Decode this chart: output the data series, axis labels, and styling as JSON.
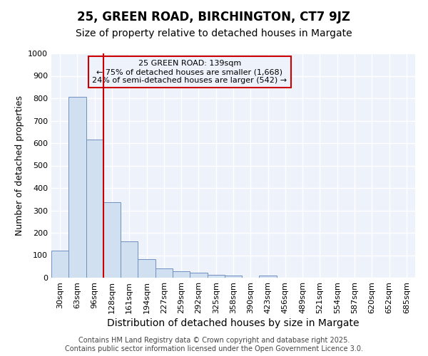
{
  "title": "25, GREEN ROAD, BIRCHINGTON, CT7 9JZ",
  "subtitle": "Size of property relative to detached houses in Margate",
  "xlabel": "Distribution of detached houses by size in Margate",
  "ylabel": "Number of detached properties",
  "categories": [
    "30sqm",
    "63sqm",
    "96sqm",
    "128sqm",
    "161sqm",
    "194sqm",
    "227sqm",
    "259sqm",
    "292sqm",
    "325sqm",
    "358sqm",
    "390sqm",
    "423sqm",
    "456sqm",
    "489sqm",
    "521sqm",
    "554sqm",
    "587sqm",
    "620sqm",
    "652sqm",
    "685sqm"
  ],
  "values": [
    122,
    805,
    617,
    337,
    163,
    82,
    40,
    27,
    22,
    13,
    8,
    0,
    8,
    0,
    0,
    0,
    0,
    0,
    0,
    0,
    0
  ],
  "bar_color": "#d0e0f0",
  "bar_edgecolor": "#7090c0",
  "vline_color": "#cc0000",
  "vline_x_index": 3,
  "ylim": [
    0,
    1000
  ],
  "yticks": [
    0,
    100,
    200,
    300,
    400,
    500,
    600,
    700,
    800,
    900,
    1000
  ],
  "annotation_text": "25 GREEN ROAD: 139sqm\n← 75% of detached houses are smaller (1,668)\n24% of semi-detached houses are larger (542) →",
  "annotation_color": "#cc0000",
  "background_color": "#ffffff",
  "plot_bg_color": "#eef2fb",
  "grid_color": "#ffffff",
  "footer_line1": "Contains HM Land Registry data © Crown copyright and database right 2025.",
  "footer_line2": "Contains public sector information licensed under the Open Government Licence 3.0.",
  "title_fontsize": 12,
  "subtitle_fontsize": 10,
  "xlabel_fontsize": 10,
  "ylabel_fontsize": 9,
  "tick_fontsize": 8,
  "annotation_fontsize": 8,
  "footer_fontsize": 7
}
